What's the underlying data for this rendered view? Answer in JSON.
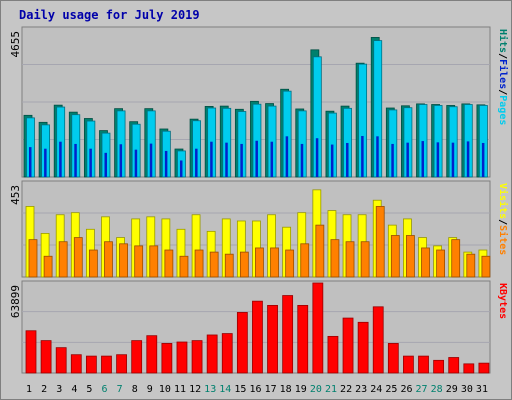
{
  "chart_data": [
    {
      "type": "bar",
      "title": "Daily usage for July 2019",
      "ymax_label": "4655",
      "right_label": [
        "Pages",
        "/",
        "Files",
        "/",
        "Hits"
      ],
      "categories": [
        "1",
        "2",
        "3",
        "4",
        "5",
        "6",
        "7",
        "8",
        "9",
        "10",
        "11",
        "12",
        "13",
        "14",
        "15",
        "16",
        "17",
        "18",
        "19",
        "20",
        "21",
        "22",
        "23",
        "24",
        "25",
        "26",
        "27",
        "28",
        "29",
        "30",
        "31"
      ],
      "weekend_days": [
        "6",
        "7",
        "13",
        "14",
        "20",
        "21",
        "27",
        "28"
      ],
      "series": [
        {
          "name": "Hits",
          "color": "#00806e",
          "values": [
            1940,
            1720,
            2260,
            2040,
            1840,
            1460,
            2150,
            1740,
            2150,
            1510,
            880,
            1820,
            2220,
            2230,
            2130,
            2380,
            2310,
            2760,
            2140,
            4000,
            2070,
            2230,
            3580,
            4390,
            2170,
            2240,
            2300,
            2280,
            2250,
            2300,
            2270
          ]
        },
        {
          "name": "Files",
          "color": "#00ccee",
          "values": [
            1860,
            1640,
            2200,
            1960,
            1760,
            1380,
            2080,
            1660,
            2080,
            1440,
            820,
            1770,
            2170,
            2160,
            2060,
            2290,
            2230,
            2700,
            2080,
            3780,
            2010,
            2160,
            3550,
            4290,
            2110,
            2180,
            2280,
            2250,
            2210,
            2280,
            2250
          ]
        },
        {
          "name": "Pages",
          "color": "#0022cc",
          "values": [
            940,
            890,
            1110,
            1040,
            890,
            760,
            1030,
            860,
            1050,
            820,
            520,
            890,
            1110,
            1080,
            1040,
            1140,
            1110,
            1280,
            1040,
            1220,
            1020,
            1070,
            1290,
            1280,
            1040,
            1080,
            1130,
            1090,
            1080,
            1120,
            1070
          ]
        }
      ]
    },
    {
      "type": "bar",
      "ymax_label": "453",
      "right_label": [
        "Sites",
        "/",
        "Visits"
      ],
      "categories": [
        "1",
        "2",
        "3",
        "4",
        "5",
        "6",
        "7",
        "8",
        "9",
        "10",
        "11",
        "12",
        "13",
        "14",
        "15",
        "16",
        "17",
        "18",
        "19",
        "20",
        "21",
        "22",
        "23",
        "24",
        "25",
        "26",
        "27",
        "28",
        "29",
        "30",
        "31"
      ],
      "series": [
        {
          "name": "Visits",
          "color": "#ffff00",
          "values": [
            340,
            210,
            300,
            310,
            230,
            290,
            190,
            280,
            290,
            280,
            230,
            300,
            220,
            280,
            270,
            270,
            300,
            240,
            310,
            420,
            320,
            300,
            300,
            370,
            250,
            280,
            190,
            150,
            190,
            120,
            130
          ]
        },
        {
          "name": "Sites",
          "color": "#ff8000",
          "values": [
            180,
            100,
            170,
            190,
            130,
            170,
            160,
            150,
            150,
            130,
            100,
            130,
            120,
            110,
            120,
            140,
            140,
            130,
            160,
            250,
            180,
            170,
            170,
            340,
            200,
            200,
            140,
            130,
            180,
            110,
            100
          ]
        }
      ]
    },
    {
      "type": "bar",
      "ymax_label": "63899",
      "right_label": [
        "KBytes"
      ],
      "categories": [
        "1",
        "2",
        "3",
        "4",
        "5",
        "6",
        "7",
        "8",
        "9",
        "10",
        "11",
        "12",
        "13",
        "14",
        "15",
        "16",
        "17",
        "18",
        "19",
        "20",
        "21",
        "22",
        "23",
        "24",
        "25",
        "26",
        "27",
        "28",
        "29",
        "30",
        "31"
      ],
      "series": [
        {
          "name": "KBytes",
          "color": "#ff0000",
          "values": [
            30000,
            23000,
            18000,
            13000,
            12000,
            12000,
            13000,
            23000,
            26500,
            21000,
            22000,
            23000,
            27000,
            28000,
            43000,
            51000,
            48000,
            55000,
            48000,
            63899,
            26000,
            39000,
            36000,
            47000,
            21000,
            12000,
            12000,
            9000,
            11000,
            6500,
            7000
          ]
        }
      ]
    }
  ],
  "colors": {
    "background": "#c6c6c6",
    "plot_background": "#c0c0c0",
    "weekday_tick": "#000000",
    "weekend_tick": "#00806e",
    "title": "#0000aa"
  }
}
